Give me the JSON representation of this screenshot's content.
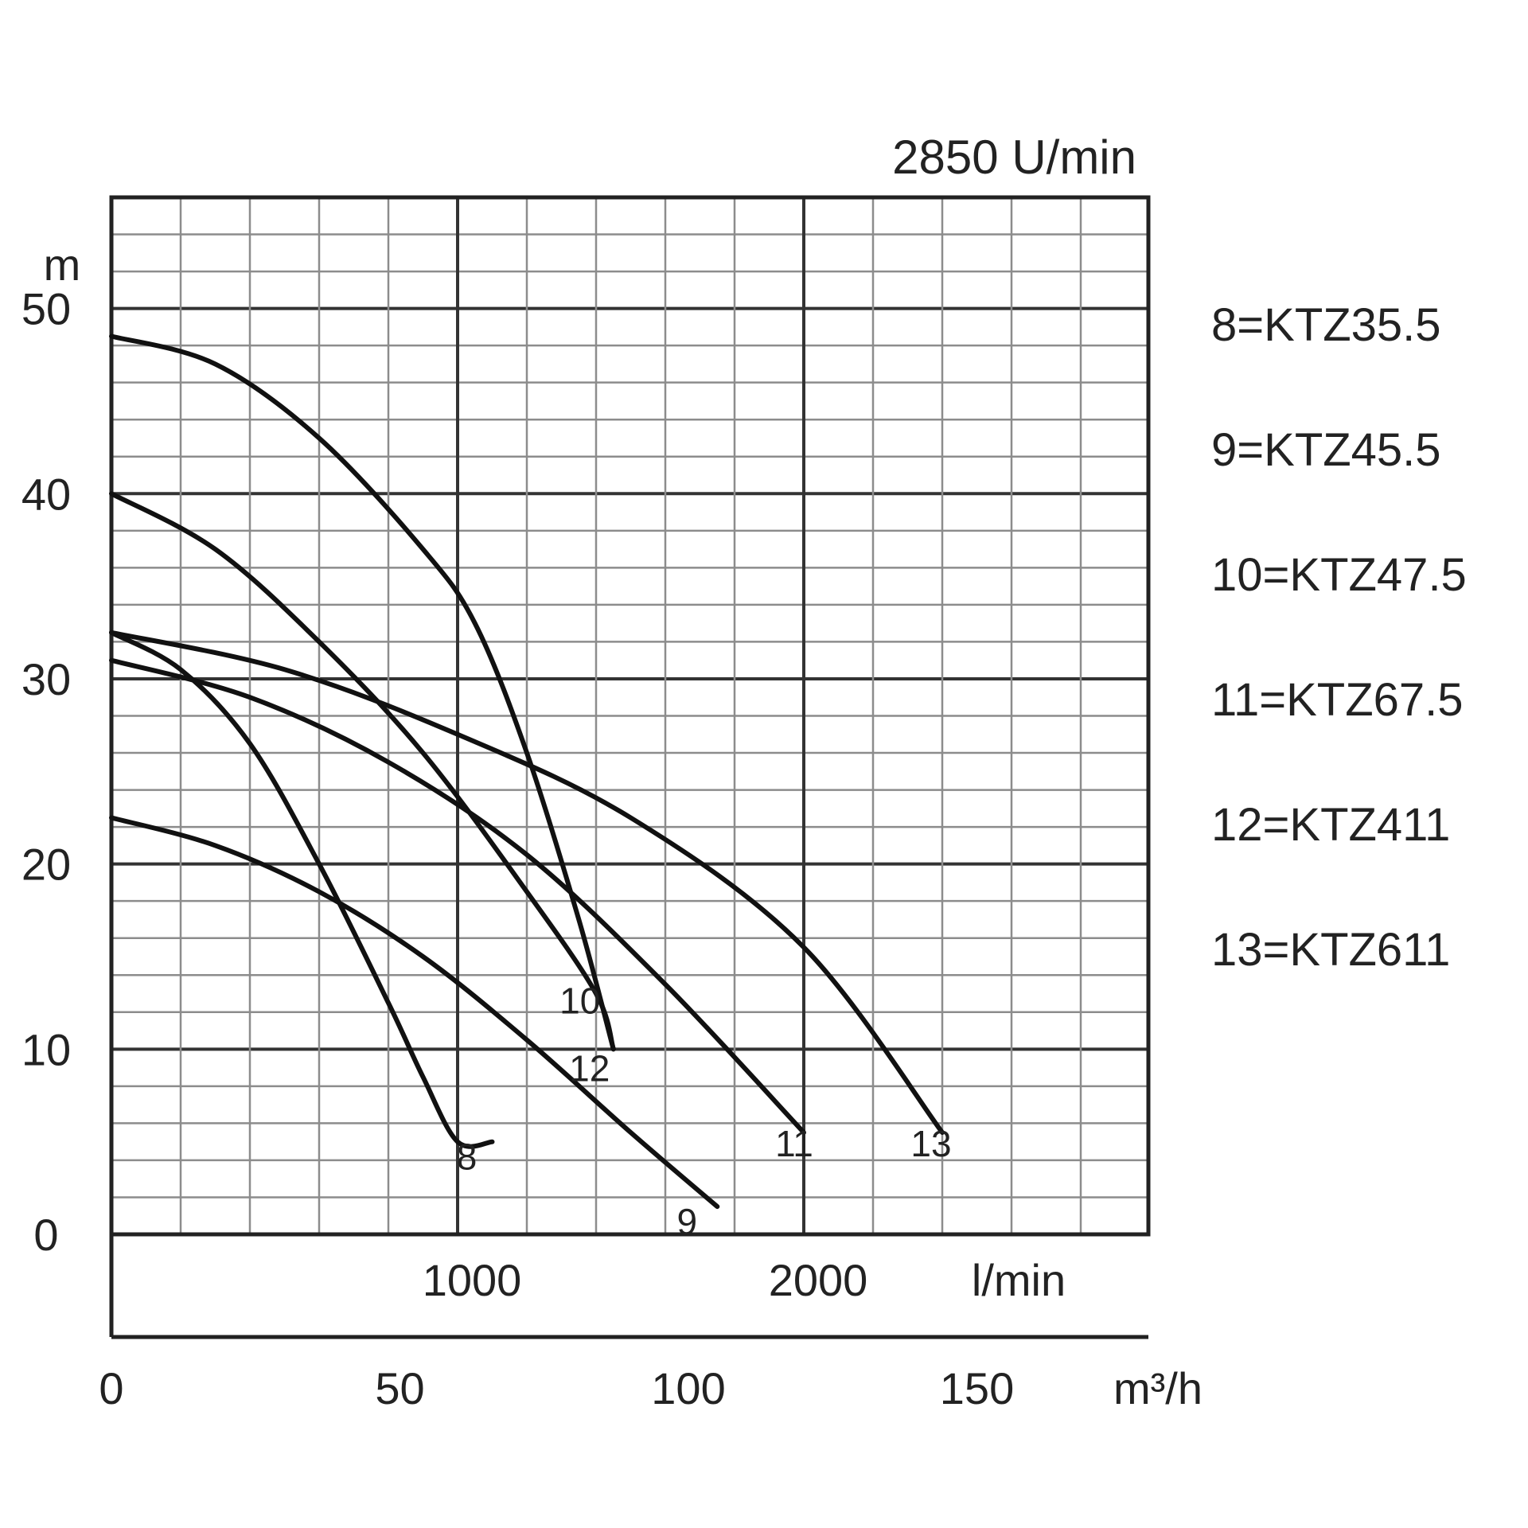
{
  "chart_data": {
    "type": "line",
    "title": "2850 U/min",
    "ylabel": "m",
    "xlabel_primary": "l/min",
    "xlabel_secondary": "m³/h",
    "xlim_lmin": [
      0,
      3000
    ],
    "ylim": [
      0,
      56
    ],
    "y_ticks": [
      "0",
      "10",
      "20",
      "30",
      "40",
      "50"
    ],
    "x_ticks_lmin": [
      "1000",
      "2000"
    ],
    "x_ticks_m3h": [
      "0",
      "50",
      "100",
      "150"
    ],
    "grid": true,
    "legend_position": "right",
    "legend": [
      "8=KTZ35.5",
      "9=KTZ45.5",
      "10=KTZ47.5",
      "11=KTZ67.5",
      "12=KTZ411",
      "13=KTZ611"
    ],
    "series": [
      {
        "name": "8",
        "x": [
          0,
          200,
          400,
          600,
          800,
          900,
          1000,
          1100
        ],
        "y": [
          32.5,
          30.5,
          26.5,
          20,
          12.5,
          8.5,
          5,
          5
        ]
      },
      {
        "name": "9",
        "x": [
          0,
          300,
          600,
          900,
          1200,
          1500,
          1750
        ],
        "y": [
          22.5,
          21,
          18.5,
          15,
          10.5,
          5.5,
          1.5
        ]
      },
      {
        "name": "10",
        "x": [
          0,
          300,
          600,
          900,
          1200,
          1400,
          1450
        ],
        "y": [
          40,
          37,
          32,
          26,
          18.5,
          13,
          10
        ]
      },
      {
        "name": "11",
        "x": [
          0,
          400,
          800,
          1200,
          1600,
          2000
        ],
        "y": [
          31,
          29,
          25.5,
          20.5,
          13.5,
          5.5
        ]
      },
      {
        "name": "12",
        "x": [
          0,
          300,
          600,
          900,
          1050,
          1200,
          1350,
          1450
        ],
        "y": [
          48.5,
          47,
          43,
          37,
          33,
          26,
          17,
          10
        ]
      },
      {
        "name": "13",
        "x": [
          0,
          500,
          1000,
          1500,
          2000,
          2400
        ],
        "y": [
          32.5,
          30.5,
          27,
          22.5,
          15.5,
          5.5
        ]
      }
    ],
    "curve_labels": [
      {
        "series": "8",
        "text": "8"
      },
      {
        "series": "9",
        "text": "9"
      },
      {
        "series": "10",
        "text": "10"
      },
      {
        "series": "11",
        "text": "11"
      },
      {
        "series": "12",
        "text": "12"
      },
      {
        "series": "13",
        "text": "13"
      }
    ]
  }
}
